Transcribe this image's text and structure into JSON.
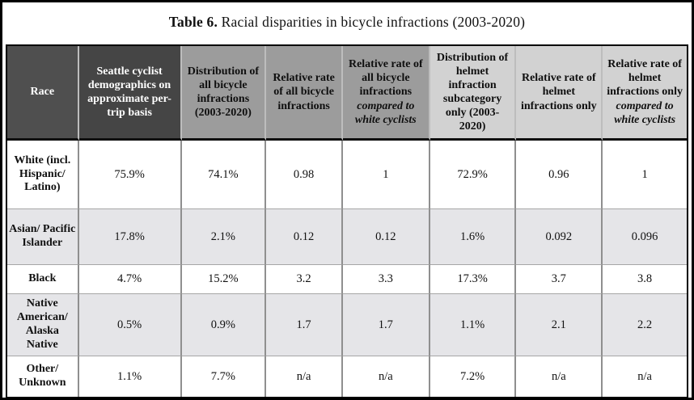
{
  "caption": {
    "label": "Table 6.",
    "text": "Racial disparities in bicycle infractions (2003-2020)"
  },
  "table": {
    "columns": [
      {
        "header": "Race"
      },
      {
        "header": "Seattle cyclist demographics on approximate per-trip basis"
      },
      {
        "header": "Distribution of all bicycle infractions (2003-2020)"
      },
      {
        "header": "Relative rate of all bicycle infractions"
      },
      {
        "header": "Relative rate of all bicycle infractions",
        "italic": "compared to white cyclists"
      },
      {
        "header": "Distribution of helmet infraction subcategory only (2003-2020)"
      },
      {
        "header": "Relative rate of helmet infractions only"
      },
      {
        "header": "Relative rate of helmet infractions only",
        "italic": "compared to white cyclists"
      }
    ],
    "rows": [
      {
        "race": "White (incl. Hispanic/ Latino)",
        "values": [
          "75.9%",
          "74.1%",
          "0.98",
          "1",
          "72.9%",
          "0.96",
          "1"
        ]
      },
      {
        "race": "Asian/ Pacific Islander",
        "values": [
          "17.8%",
          "2.1%",
          "0.12",
          "0.12",
          "1.6%",
          "0.092",
          "0.096"
        ]
      },
      {
        "race": "Black",
        "values": [
          "4.7%",
          "15.2%",
          "3.2",
          "3.3",
          "17.3%",
          "3.7",
          "3.8"
        ]
      },
      {
        "race": "Native American/ Alaska Native",
        "values": [
          "0.5%",
          "0.9%",
          "1.7",
          "1.7",
          "1.1%",
          "2.1",
          "2.2"
        ]
      },
      {
        "race": "Other/ Unknown",
        "values": [
          "1.1%",
          "7.7%",
          "n/a",
          "n/a",
          "7.2%",
          "n/a",
          "n/a"
        ]
      }
    ]
  },
  "colors": {
    "header_dark": "#4f4f4f",
    "header_medium": "#9c9c9c",
    "header_light": "#d2d2d2",
    "row_stripe": "#e5e5e8",
    "frame_border": "#000000"
  }
}
